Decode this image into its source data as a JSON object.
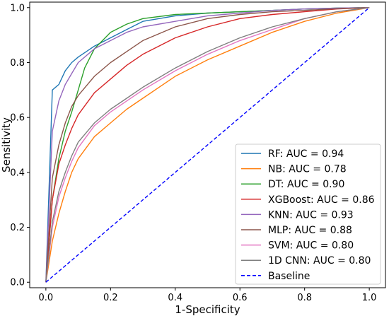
{
  "chart_data": {
    "type": "line",
    "title": "",
    "xlabel": "1-Specificity",
    "ylabel": "Sensitivity",
    "xlim": [
      -0.05,
      1.05
    ],
    "ylim": [
      -0.02,
      1.02
    ],
    "xticks": [
      "0.0",
      "0.2",
      "0.4",
      "0.6",
      "0.8",
      "1.0"
    ],
    "yticks": [
      "0.0",
      "0.2",
      "0.4",
      "0.6",
      "0.8",
      "1.0"
    ],
    "grid": false,
    "legend_position": "lower-right",
    "series": [
      {
        "name": "RF: AUC = 0.94",
        "color": "#1f77b4",
        "x": [
          0,
          0.02,
          0.04,
          0.06,
          0.08,
          0.1,
          0.15,
          0.2,
          0.25,
          0.3,
          0.4,
          0.5,
          0.6,
          0.7,
          0.8,
          0.9,
          1.0
        ],
        "y": [
          0,
          0.7,
          0.72,
          0.77,
          0.8,
          0.82,
          0.86,
          0.89,
          0.92,
          0.95,
          0.97,
          0.98,
          0.985,
          0.99,
          0.995,
          0.998,
          1.0
        ]
      },
      {
        "name": "NB: AUC = 0.78",
        "color": "#ff7f0e",
        "x": [
          0,
          0.02,
          0.04,
          0.06,
          0.08,
          0.1,
          0.15,
          0.2,
          0.25,
          0.3,
          0.4,
          0.5,
          0.6,
          0.7,
          0.8,
          0.9,
          1.0
        ],
        "y": [
          0,
          0.15,
          0.25,
          0.33,
          0.4,
          0.45,
          0.53,
          0.58,
          0.63,
          0.67,
          0.75,
          0.81,
          0.86,
          0.91,
          0.95,
          0.98,
          1.0
        ]
      },
      {
        "name": "DT: AUC = 0.90",
        "color": "#2ca02c",
        "x": [
          0,
          0.02,
          0.04,
          0.06,
          0.08,
          0.1,
          0.12,
          0.15,
          0.2,
          0.25,
          0.3,
          0.4,
          0.5,
          0.6,
          0.7,
          0.8,
          0.9,
          1.0
        ],
        "y": [
          0,
          0.3,
          0.45,
          0.55,
          0.62,
          0.7,
          0.78,
          0.85,
          0.91,
          0.94,
          0.96,
          0.975,
          0.98,
          0.985,
          0.99,
          0.995,
          0.998,
          1.0
        ]
      },
      {
        "name": "XGBoost: AUC = 0.86",
        "color": "#d62728",
        "x": [
          0,
          0.02,
          0.04,
          0.06,
          0.08,
          0.1,
          0.15,
          0.2,
          0.25,
          0.3,
          0.4,
          0.5,
          0.6,
          0.7,
          0.8,
          0.9,
          1.0
        ],
        "y": [
          0,
          0.3,
          0.43,
          0.5,
          0.56,
          0.61,
          0.69,
          0.74,
          0.79,
          0.83,
          0.89,
          0.93,
          0.96,
          0.975,
          0.985,
          0.995,
          1.0
        ]
      },
      {
        "name": "KNN: AUC = 0.93",
        "color": "#9467bd",
        "x": [
          0,
          0.02,
          0.04,
          0.06,
          0.08,
          0.1,
          0.15,
          0.2,
          0.25,
          0.3,
          0.4,
          0.5,
          0.6,
          0.7,
          0.8,
          0.9,
          1.0
        ],
        "y": [
          0,
          0.55,
          0.66,
          0.72,
          0.76,
          0.8,
          0.85,
          0.88,
          0.91,
          0.93,
          0.95,
          0.97,
          0.98,
          0.99,
          0.995,
          0.998,
          1.0
        ]
      },
      {
        "name": "MLP: AUC = 0.88",
        "color": "#8c564b",
        "x": [
          0,
          0.02,
          0.04,
          0.06,
          0.08,
          0.1,
          0.15,
          0.2,
          0.25,
          0.3,
          0.4,
          0.5,
          0.6,
          0.7,
          0.8,
          0.9,
          1.0
        ],
        "y": [
          0,
          0.38,
          0.5,
          0.58,
          0.64,
          0.68,
          0.75,
          0.8,
          0.84,
          0.88,
          0.93,
          0.96,
          0.975,
          0.985,
          0.99,
          0.996,
          1.0
        ]
      },
      {
        "name": "SVM: AUC = 0.80",
        "color": "#e377c2",
        "x": [
          0,
          0.02,
          0.04,
          0.06,
          0.08,
          0.1,
          0.15,
          0.2,
          0.25,
          0.3,
          0.4,
          0.5,
          0.6,
          0.7,
          0.8,
          0.9,
          1.0
        ],
        "y": [
          0,
          0.2,
          0.31,
          0.38,
          0.44,
          0.49,
          0.57,
          0.62,
          0.66,
          0.7,
          0.77,
          0.83,
          0.88,
          0.92,
          0.96,
          0.985,
          1.0
        ]
      },
      {
        "name": "1D CNN: AUC = 0.80",
        "color": "#7f7f7f",
        "x": [
          0,
          0.02,
          0.04,
          0.06,
          0.08,
          0.1,
          0.15,
          0.2,
          0.25,
          0.3,
          0.4,
          0.5,
          0.6,
          0.7,
          0.8,
          0.9,
          1.0
        ],
        "y": [
          0,
          0.22,
          0.33,
          0.4,
          0.46,
          0.51,
          0.58,
          0.63,
          0.67,
          0.71,
          0.78,
          0.84,
          0.89,
          0.93,
          0.96,
          0.985,
          1.0
        ]
      },
      {
        "name": "Baseline",
        "color": "#0000ff",
        "dashed": true,
        "x": [
          0,
          1
        ],
        "y": [
          0,
          1
        ]
      }
    ]
  }
}
